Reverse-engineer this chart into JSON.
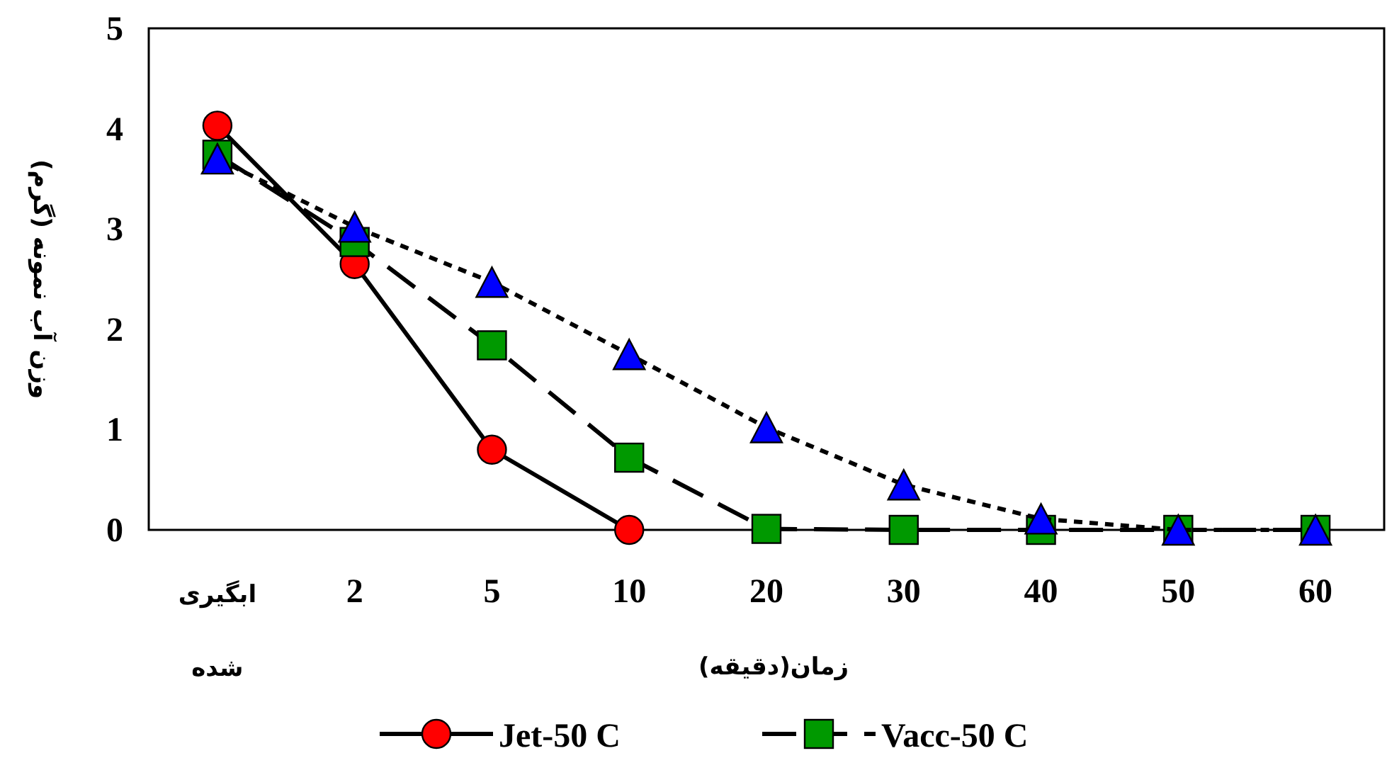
{
  "chart_data": {
    "type": "line",
    "xlabel": "زمان(دقیقه)",
    "ylabel": "وزن آب نمونه (گرم)",
    "categories": [
      "ابگیری شده",
      "2",
      "5",
      "10",
      "20",
      "30",
      "40",
      "50",
      "60"
    ],
    "ylim": [
      0,
      5
    ],
    "yticks": [
      0,
      1,
      2,
      3,
      4,
      5
    ],
    "grid": false,
    "legend": "bottom",
    "series": [
      {
        "name": "Jet-50 C",
        "color": "#ff0000",
        "marker": "circle",
        "line_style": "solid",
        "values": [
          4.03,
          2.65,
          0.8,
          0,
          null,
          null,
          null,
          null,
          null
        ]
      },
      {
        "name": "Vacc-50 C",
        "color": "#009900",
        "marker": "square",
        "line_style": "dashed",
        "values": [
          3.74,
          2.87,
          1.84,
          0.72,
          0.01,
          0,
          0,
          0,
          0
        ]
      },
      {
        "color": "#0000ff",
        "marker": "triangle",
        "line_style": "dotted",
        "values": [
          3.7,
          3.02,
          2.47,
          1.75,
          1.02,
          0.45,
          0.11,
          0,
          0
        ]
      }
    ]
  }
}
